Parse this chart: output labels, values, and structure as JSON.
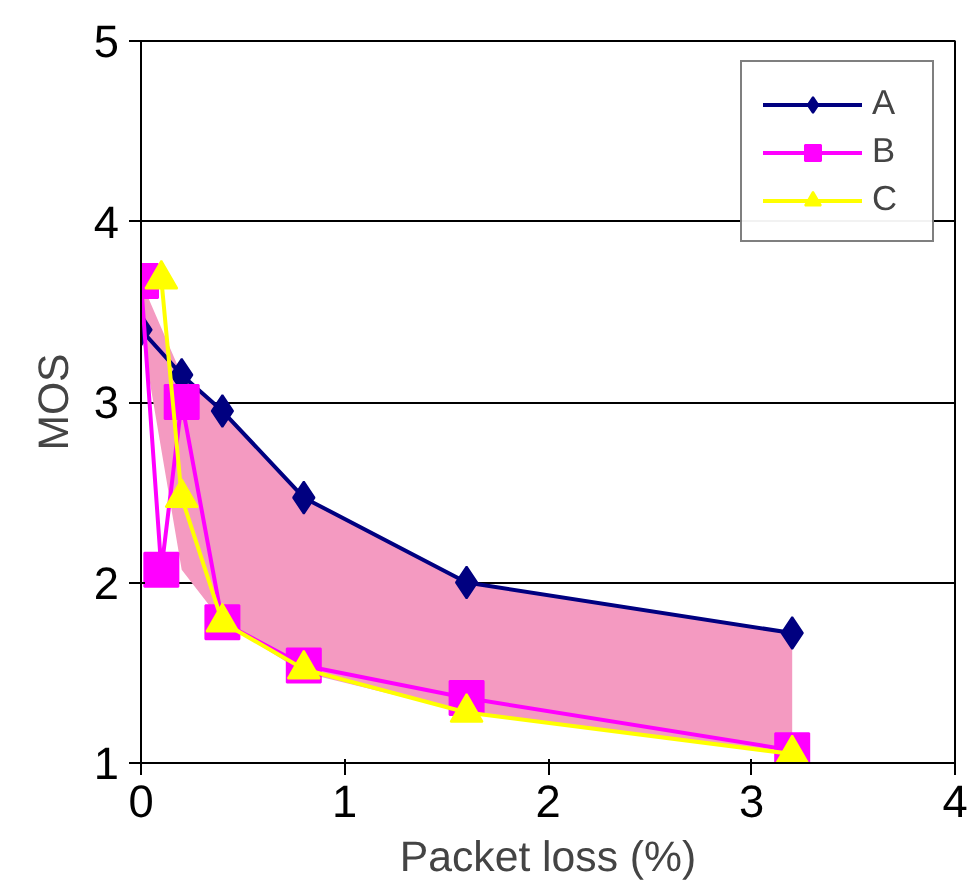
{
  "chart_data": {
    "type": "line",
    "xlabel": "Packet loss (%)",
    "ylabel": "MOS",
    "xlim": [
      0,
      4
    ],
    "ylim": [
      1,
      5
    ],
    "xticks": [
      0,
      1,
      2,
      3,
      4
    ],
    "yticks": [
      1,
      2,
      3,
      4,
      5
    ],
    "grid": "y",
    "legend": "top right",
    "series": [
      {
        "name": "A",
        "color": "#000080",
        "marker": "diamond",
        "x": [
          0,
          0.2,
          0.4,
          0.8,
          1.6,
          3.2
        ],
        "values": [
          3.4,
          3.15,
          2.95,
          2.47,
          2.0,
          1.72
        ],
        "upper": [
          3.67,
          3.15,
          2.95,
          2.47,
          2.0,
          1.72
        ],
        "lower": [
          3.4,
          2.07,
          1.78,
          1.5,
          1.28,
          1.05
        ]
      },
      {
        "name": "B",
        "color": "#ff00ff",
        "marker": "square",
        "x": [
          0,
          0.1,
          0.2,
          0.4,
          0.8,
          1.6,
          3.2
        ],
        "values": [
          3.67,
          2.07,
          3.0,
          1.78,
          1.54,
          1.36,
          1.07
        ]
      },
      {
        "name": "C",
        "color": "#ffff00",
        "marker": "triangle",
        "x": [
          0.1,
          0.2,
          0.4,
          0.8,
          1.6,
          3.2
        ],
        "values": [
          3.68,
          2.47,
          1.78,
          1.52,
          1.28,
          1.05
        ]
      }
    ]
  }
}
